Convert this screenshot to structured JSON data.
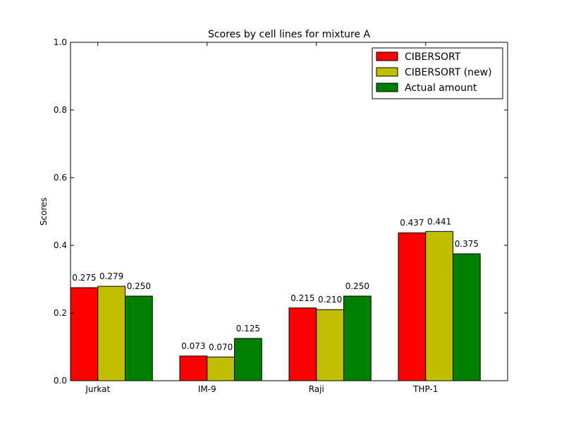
{
  "chart_data": {
    "type": "bar",
    "title": "Scores by cell lines for mixture A",
    "xlabel": "",
    "ylabel": "Scores",
    "ylim": [
      0,
      1.0
    ],
    "yticks": [
      "0.0",
      "0.2",
      "0.4",
      "0.6",
      "0.8",
      "1.0"
    ],
    "categories": [
      "Jurkat",
      "IM-9",
      "Raji",
      "THP-1"
    ],
    "series": [
      {
        "name": "CIBERSORT",
        "color": "#ff0000",
        "values": [
          0.275,
          0.073,
          0.215,
          0.437
        ],
        "labels": [
          "0.275",
          "0.073",
          "0.215",
          "0.437"
        ]
      },
      {
        "name": "CIBERSORT (new)",
        "color": "#bfbf00",
        "values": [
          0.279,
          0.07,
          0.21,
          0.441
        ],
        "labels": [
          "0.279",
          "0.070",
          "0.210",
          "0.441"
        ]
      },
      {
        "name": "Actual amount",
        "color": "#008000",
        "values": [
          0.25,
          0.125,
          0.25,
          0.375
        ],
        "labels": [
          "0.250",
          "0.125",
          "0.250",
          "0.375"
        ]
      }
    ],
    "legend_position": "top-right",
    "grid": false
  }
}
